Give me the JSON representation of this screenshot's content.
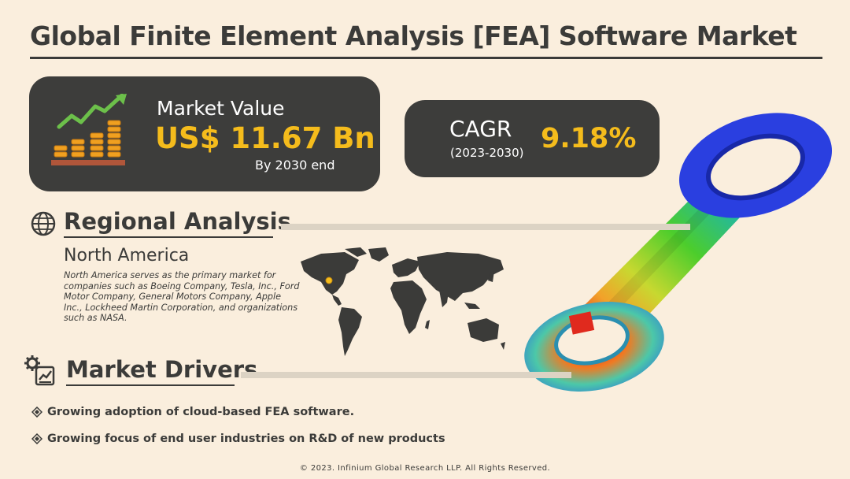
{
  "header": {
    "title": "Global Finite Element Analysis [FEA] Software Market"
  },
  "market_value": {
    "label": "Market Value",
    "value": "US$ 11.67 Bn",
    "note": "By 2030 end",
    "icon": "growth-coins-icon"
  },
  "cagr": {
    "label": "CAGR",
    "period": "(2023-2030)",
    "value": "9.18%"
  },
  "regional": {
    "heading": "Regional Analysis",
    "icon": "globe-icon",
    "region": "North America",
    "description": "North America serves as the primary market for companies such as Boeing Company, Tesla, Inc., Ford Motor Company, General Motors Company, Apple Inc., Lockheed Martin Corporation, and organizations such as NASA."
  },
  "drivers": {
    "heading": "Market Drivers",
    "icon": "gear-chart-icon",
    "items": [
      {
        "text": "Growing adoption of cloud-based FEA software."
      },
      {
        "text": "Growing focus of end user industries on R&D of new products"
      }
    ]
  },
  "footer": {
    "copyright": "© 2023. Infinium Global Research LLP. All Rights Reserved."
  },
  "colors": {
    "background": "#faeedd",
    "card": "#3d3d3b",
    "accent": "#f5bc1c",
    "text": "#3b3b39"
  }
}
